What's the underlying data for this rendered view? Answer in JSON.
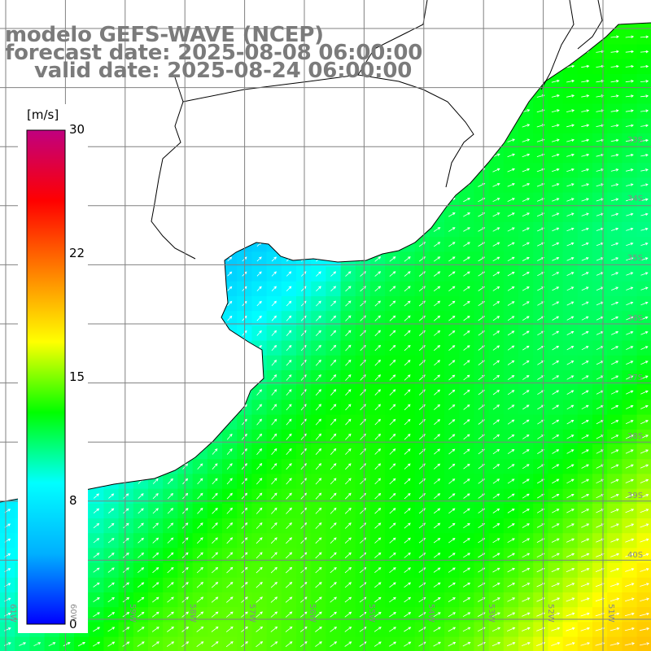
{
  "header": {
    "line1": "modelo GEFS-WAVE (NCEP)",
    "line2": "forecast date: 2025-08-08 06:00:00",
    "line3": "valid date: 2025-08-24 06:00:00"
  },
  "colorbar": {
    "unit": "[m/s]",
    "ticks": [
      "30",
      "22",
      "15",
      "8",
      "0"
    ],
    "min": 0,
    "max": 30,
    "colors": [
      "#0000ff",
      "#00b0ff",
      "#00ffff",
      "#00ff00",
      "#ffff00",
      "#ff8000",
      "#ff0000",
      "#c00080"
    ]
  },
  "map": {
    "lat_labels": [
      "33S",
      "34S",
      "35S",
      "36S",
      "37S",
      "38S",
      "39S",
      "40S"
    ],
    "lon_labels": [
      "61W",
      "60W",
      "59W",
      "58W",
      "57W",
      "56W",
      "55W",
      "54W",
      "53W",
      "52W",
      "51W"
    ],
    "land_color": "#ffffff",
    "grid_color": "#808080",
    "arrow_color": "#ffffff"
  }
}
